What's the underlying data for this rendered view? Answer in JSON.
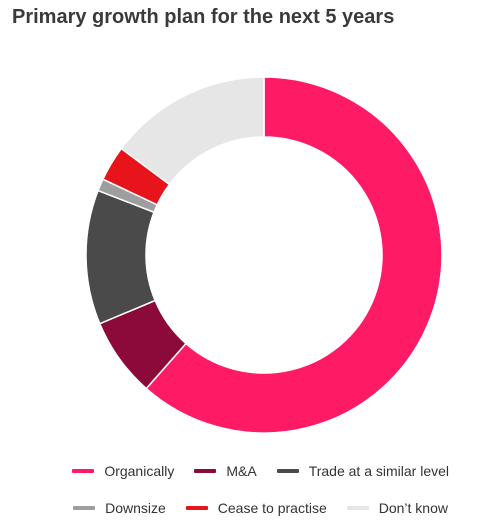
{
  "chart_data": {
    "type": "pie",
    "donut": true,
    "title": "Primary growth plan for the next 5 years",
    "series": [
      {
        "name": "Organically",
        "value": 61.5,
        "color": "#ff1a66"
      },
      {
        "name": "M&A",
        "value": 7.2,
        "color": "#8c0a3a"
      },
      {
        "name": "Trade at a similar level",
        "value": 12.2,
        "color": "#4a4a4a"
      },
      {
        "name": "Downsize",
        "value": 1.1,
        "color": "#9e9e9e"
      },
      {
        "name": "Cease to practise",
        "value": 3.2,
        "color": "#e8141c"
      },
      {
        "name": "Don’t know",
        "value": 14.8,
        "color": "#e6e6e6"
      }
    ],
    "legend_position": "bottom-right"
  }
}
